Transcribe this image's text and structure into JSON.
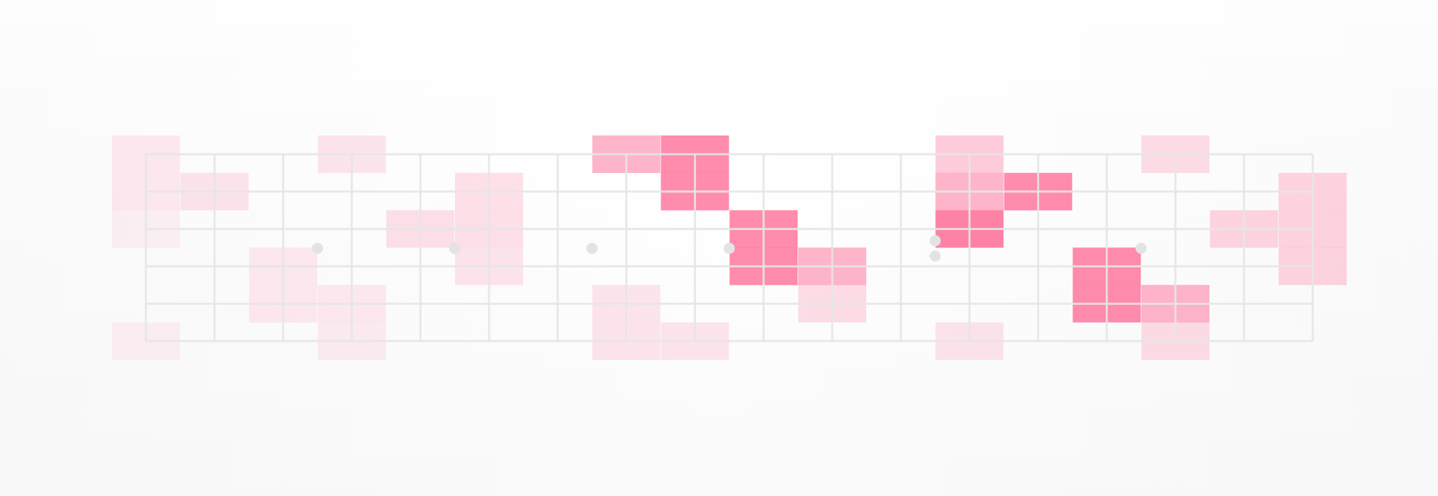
{
  "graphic": {
    "icon": "fretboard-scale-diagram-icon",
    "colors": {
      "grid_line": "#e6e6e6",
      "grid_dot": "#e3e3e3",
      "block": "#ff5a8a"
    },
    "fretboard": {
      "strings": 6,
      "frets": 17,
      "marker_frets": [
        3,
        5,
        7,
        9,
        12,
        15
      ],
      "double_marker_frets": [
        12
      ]
    },
    "highlights": [
      {
        "string": 1,
        "fret": 0,
        "level": 0.12
      },
      {
        "string": 2,
        "fret": 0,
        "level": 0.12
      },
      {
        "string": 2,
        "fret": 1,
        "level": 0.15
      },
      {
        "string": 3,
        "fret": 0,
        "level": 0.08
      },
      {
        "string": 4,
        "fret": 2,
        "level": 0.12
      },
      {
        "string": 5,
        "fret": 2,
        "level": 0.12
      },
      {
        "string": 5,
        "fret": 3,
        "level": 0.12
      },
      {
        "string": 6,
        "fret": 0,
        "level": 0.08
      },
      {
        "string": 6,
        "fret": 3,
        "level": 0.1
      },
      {
        "string": 1,
        "fret": 3,
        "level": 0.15
      },
      {
        "string": 2,
        "fret": 5,
        "level": 0.18
      },
      {
        "string": 3,
        "fret": 4,
        "level": 0.18
      },
      {
        "string": 3,
        "fret": 5,
        "level": 0.18
      },
      {
        "string": 4,
        "fret": 5,
        "level": 0.15
      },
      {
        "string": 1,
        "fret": 7,
        "level": 0.45
      },
      {
        "string": 1,
        "fret": 8,
        "level": 0.7
      },
      {
        "string": 2,
        "fret": 8,
        "level": 0.7
      },
      {
        "string": 3,
        "fret": 9,
        "level": 0.7
      },
      {
        "string": 4,
        "fret": 9,
        "level": 0.7
      },
      {
        "string": 4,
        "fret": 10,
        "level": 0.45
      },
      {
        "string": 5,
        "fret": 10,
        "level": 0.2
      },
      {
        "string": 5,
        "fret": 7,
        "level": 0.15
      },
      {
        "string": 6,
        "fret": 7,
        "level": 0.15
      },
      {
        "string": 6,
        "fret": 8,
        "level": 0.15
      },
      {
        "string": 1,
        "fret": 12,
        "level": 0.3
      },
      {
        "string": 2,
        "fret": 12,
        "level": 0.45
      },
      {
        "string": 2,
        "fret": 13,
        "level": 0.7
      },
      {
        "string": 3,
        "fret": 12,
        "level": 0.75
      },
      {
        "string": 4,
        "fret": 14,
        "level": 0.7
      },
      {
        "string": 5,
        "fret": 14,
        "level": 0.7
      },
      {
        "string": 5,
        "fret": 15,
        "level": 0.45
      },
      {
        "string": 6,
        "fret": 15,
        "level": 0.2
      },
      {
        "string": 6,
        "fret": 12,
        "level": 0.15
      },
      {
        "string": 1,
        "fret": 15,
        "level": 0.2
      },
      {
        "string": 2,
        "fret": 17,
        "level": 0.25
      },
      {
        "string": 3,
        "fret": 16,
        "level": 0.25
      },
      {
        "string": 3,
        "fret": 17,
        "level": 0.25
      },
      {
        "string": 4,
        "fret": 17,
        "level": 0.25
      }
    ]
  }
}
